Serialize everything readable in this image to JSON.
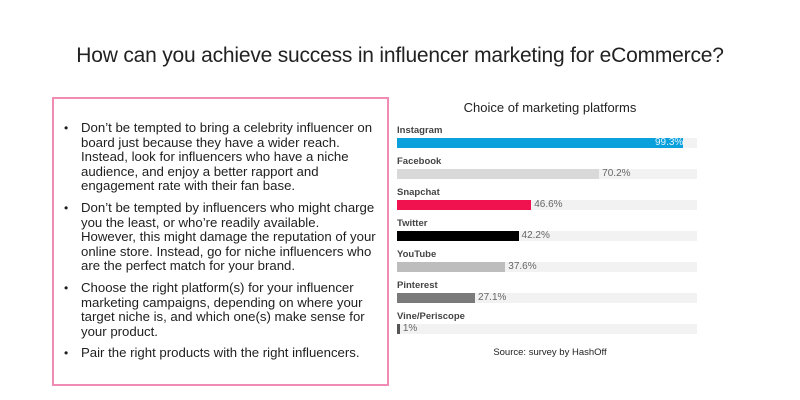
{
  "slide": {
    "title": "How can you achieve success in influencer marketing for eCommerce?",
    "bullets": [
      "Don’t be tempted to bring a celebrity influencer on board just because they have a wider reach. Instead, look for influencers who have a niche audience, and enjoy a better rapport and engagement rate with their fan base.",
      "Don’t be tempted by influencers who might charge you the least, or who’re readily available. However, this might damage the reputation of your online store. Instead, go for niche influencers who are the perfect match for your brand.",
      "Choose the right platform(s) for your influencer marketing campaigns, depending on where your target niche is, and which one(s) make sense for your product.",
      "Pair the right products with the right influencers."
    ],
    "bullet_glyph": "•",
    "textbox_border_color": "#f08cb4",
    "source": "Source: survey by HashOff"
  },
  "chart_data": {
    "type": "bar",
    "orientation": "horizontal",
    "title": "Choice of marketing platforms",
    "categories": [
      "Instagram",
      "Facebook",
      "Snapchat",
      "Twitter",
      "YouTube",
      "Pinterest",
      "Vine/Periscope"
    ],
    "values": [
      99.3,
      70.2,
      46.6,
      42.2,
      37.6,
      27.1,
      1
    ],
    "labels": [
      "99.3%",
      "70.2%",
      "46.6%",
      "42.2%",
      "37.6%",
      "27.1%",
      "1%"
    ],
    "colors": [
      "#0aa0dc",
      "#d9d9d9",
      "#f0124f",
      "#000000",
      "#bdbdbd",
      "#7a7a7a",
      "#555555"
    ],
    "xlabel": "",
    "ylabel": "",
    "xlim": [
      0,
      100
    ],
    "unit": "%",
    "grid": false,
    "legend": "none",
    "source": "Source: survey by HashOff"
  }
}
